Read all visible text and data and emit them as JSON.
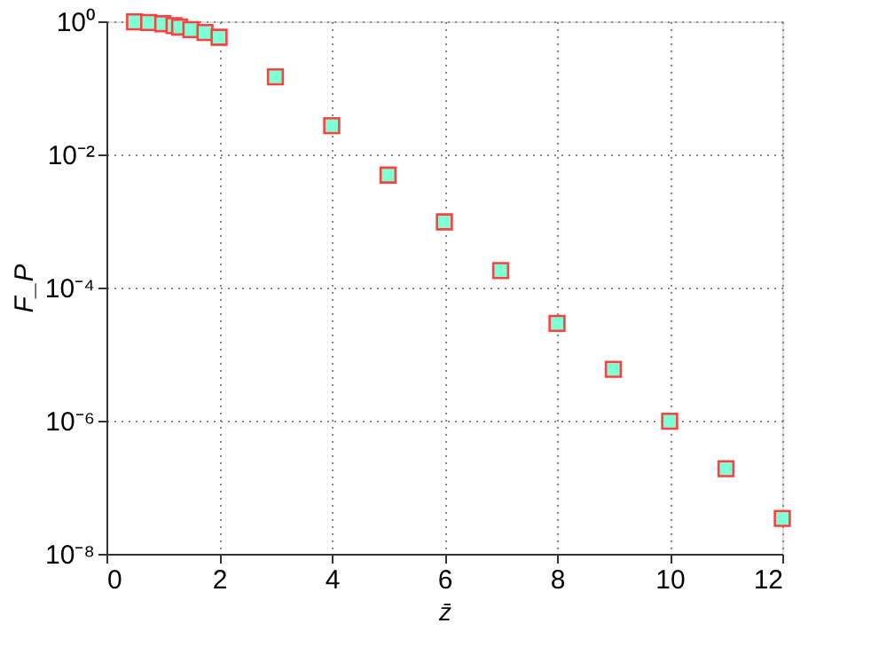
{
  "chart_data": {
    "type": "scatter",
    "xlabel": "z̄",
    "ylabel": "F_P",
    "x": [
      0.5,
      0.75,
      1,
      1.2,
      1.3,
      1.5,
      1.75,
      2,
      3,
      4,
      5,
      6,
      7,
      8,
      9,
      10,
      11,
      12
    ],
    "series": [
      {
        "color": "#7fffd4",
        "values": [
          0.98,
          0.96,
          0.92,
          0.86,
          0.82,
          0.75,
          0.68,
          0.575,
          0.146,
          0.027,
          0.0049,
          0.00097,
          0.00018,
          2.9e-05,
          5.9e-06,
          9.8e-07,
          1.9e-07,
          3.4e-08
        ]
      }
    ],
    "log": "y",
    "xlim": [
      0,
      12
    ],
    "xticks": [
      0,
      2,
      4,
      6,
      8,
      10,
      12
    ],
    "ylim": [
      1e-08,
      1
    ],
    "yticks": [
      {
        "value": 1e-08,
        "label": "10⁻⁸"
      },
      {
        "value": 1e-06,
        "label": "10⁻⁶"
      },
      {
        "value": 0.0001,
        "label": "10⁻⁴"
      },
      {
        "value": 0.01,
        "label": "10⁻²"
      },
      {
        "value": 1,
        "label": "10⁰"
      }
    ],
    "grid": true,
    "marker": "square"
  }
}
